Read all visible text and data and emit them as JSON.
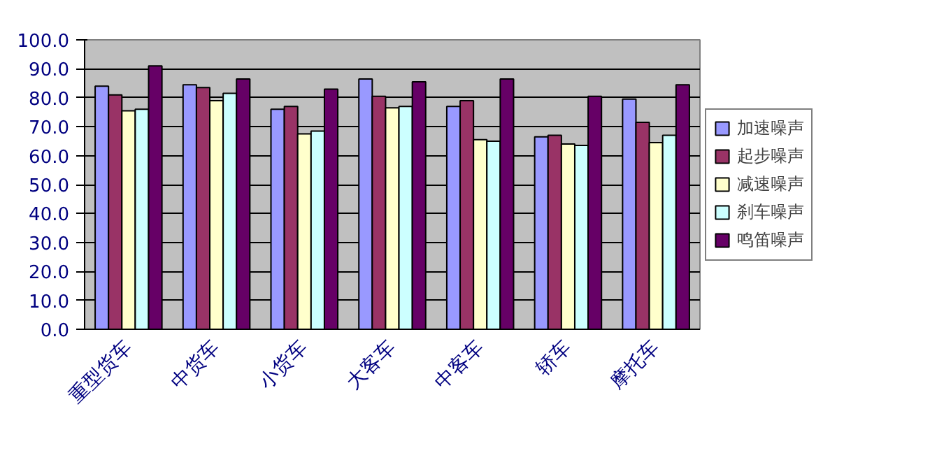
{
  "chart_data": {
    "type": "bar",
    "categories": [
      "重型货车",
      "中货车",
      "小货车",
      "大客车",
      "中客车",
      "轿车",
      "摩托车"
    ],
    "series": [
      {
        "name": "加速噪声",
        "color": "#9999ff",
        "values": [
          84,
          84.5,
          76,
          86.5,
          77,
          66.5,
          79.5
        ]
      },
      {
        "name": "起步噪声",
        "color": "#993366",
        "values": [
          81,
          83.5,
          77,
          80.5,
          79,
          67,
          71.5
        ]
      },
      {
        "name": "减速噪声",
        "color": "#ffffcc",
        "values": [
          75.5,
          79,
          67.5,
          76.5,
          65.5,
          64,
          64.5
        ]
      },
      {
        "name": "刹车噪声",
        "color": "#ccffff",
        "values": [
          76,
          81.5,
          68.5,
          77,
          65,
          63.5,
          67
        ]
      },
      {
        "name": "鸣笛噪声",
        "color": "#660066",
        "values": [
          91,
          86.5,
          83,
          85.5,
          86.5,
          80.5,
          84.5
        ]
      }
    ],
    "ylim": [
      0,
      100
    ],
    "yticks": [
      {
        "value": 0,
        "label": "0.0"
      },
      {
        "value": 10,
        "label": "10.0"
      },
      {
        "value": 20,
        "label": "20.0"
      },
      {
        "value": 30,
        "label": "30.0"
      },
      {
        "value": 40,
        "label": "40.0"
      },
      {
        "value": 50,
        "label": "50.0"
      },
      {
        "value": 60,
        "label": "60.0"
      },
      {
        "value": 70,
        "label": "70.0"
      },
      {
        "value": 80,
        "label": "80.0"
      },
      {
        "value": 90,
        "label": "90.0"
      },
      {
        "value": 100,
        "label": "100.0"
      }
    ],
    "grid": "y",
    "legend": "right"
  }
}
